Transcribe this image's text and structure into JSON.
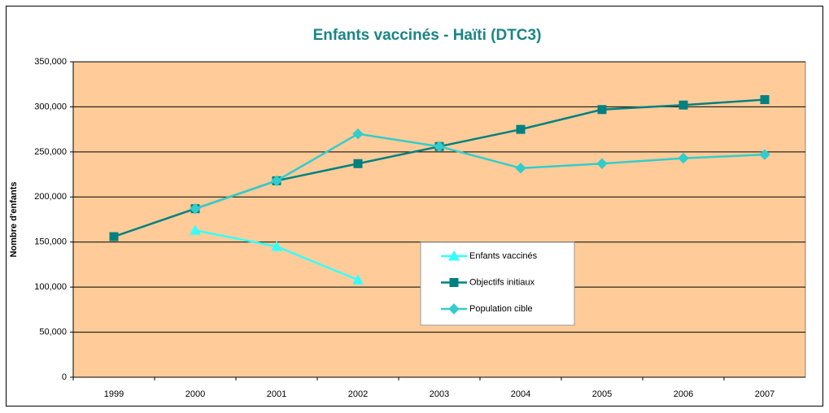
{
  "chart_data": {
    "type": "line",
    "title": "Enfants vaccinés - Haïti (DTC3)",
    "y_label": "Nombre d'enfants",
    "categories": [
      "1999",
      "2000",
      "2001",
      "2002",
      "2003",
      "2004",
      "2005",
      "2006",
      "2007"
    ],
    "series": [
      {
        "name": "Enfants vaccinés",
        "color": "#33ffff",
        "marker": "triangle",
        "values": [
          null,
          163000,
          145000,
          108000,
          null,
          null,
          null,
          null,
          null
        ]
      },
      {
        "name": "Objectifs initiaux",
        "color": "#008080",
        "marker": "square",
        "values": [
          156000,
          187000,
          218000,
          237000,
          256000,
          275000,
          297000,
          302000,
          308000
        ]
      },
      {
        "name": "Population cible",
        "color": "#33cccc",
        "marker": "diamond",
        "values": [
          null,
          187000,
          218000,
          270000,
          256000,
          232000,
          237000,
          243000,
          247000
        ]
      }
    ],
    "ylim": [
      0,
      350000
    ],
    "yticks": [
      0,
      {
        "value": 50000,
        "label": "50,000"
      },
      {
        "value": 100000,
        "label": "100,000"
      },
      {
        "value": 150000,
        "label": "150,000"
      },
      {
        "value": 200000,
        "label": "200,000"
      },
      {
        "value": 250000,
        "label": "250,000"
      },
      {
        "value": 300000,
        "label": "300,000"
      },
      {
        "value": 350000,
        "label": "350,000"
      }
    ],
    "grid": true,
    "legend": "center"
  }
}
